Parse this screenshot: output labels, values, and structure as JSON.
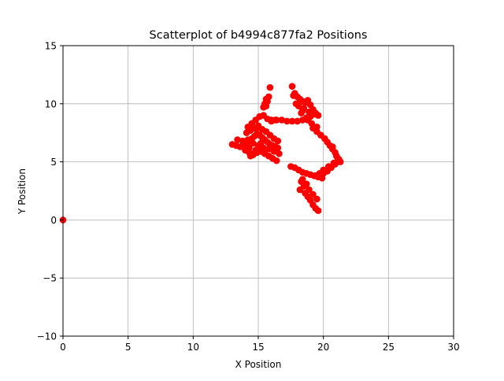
{
  "chart_data": {
    "type": "scatter",
    "title": "Scatterplot of b4994c877fa2 Positions",
    "xlabel": "X Position",
    "ylabel": "Y Position",
    "xlim": [
      0,
      30
    ],
    "ylim": [
      -10,
      15
    ],
    "xticks": [
      0,
      5,
      10,
      15,
      20,
      25,
      30
    ],
    "yticks": [
      -10,
      -5,
      0,
      5,
      10,
      15
    ],
    "xtick_labels": [
      "0",
      "5",
      "10",
      "15",
      "20",
      "25",
      "30"
    ],
    "ytick_labels": [
      "−10",
      "−5",
      "0",
      "5",
      "10",
      "15"
    ],
    "grid": true,
    "marker_color": "#ff0000",
    "series": [
      {
        "x": [
          0,
          13.0,
          13.3,
          13.6,
          13.9,
          14.1,
          14.3,
          14.5,
          14.7,
          14.9,
          15.1,
          15.3,
          15.5,
          15.7,
          15.9,
          16.1,
          16.3,
          16.5,
          13.4,
          13.8,
          14.2,
          14.6,
          15.0,
          15.4,
          15.8,
          16.2,
          16.6,
          14.0,
          14.3,
          14.6,
          14.9,
          15.2,
          15.5,
          15.8,
          16.1,
          16.4,
          14.1,
          14.4,
          14.7,
          15.0,
          15.3,
          15.6,
          15.9,
          16.2,
          16.5,
          14.2,
          14.5,
          14.8,
          15.1,
          15.4,
          15.7,
          16.0,
          16.3,
          14.4,
          14.6,
          14.8,
          15.0,
          15.2,
          14.3,
          14.9,
          15.6,
          15.7,
          15.8,
          15.9,
          15.5,
          15.6,
          15.4,
          16.0,
          16.4,
          16.8,
          17.2,
          17.6,
          18.0,
          18.4,
          18.8,
          17.6,
          17.8,
          18.0,
          18.2,
          18.4,
          18.6,
          18.8,
          19.0,
          19.2,
          19.4,
          19.6,
          18.1,
          18.5,
          18.9,
          19.3,
          17.7,
          17.9,
          18.3,
          18.7,
          19.1,
          19.5,
          18.4,
          19.0,
          19.2,
          19.5,
          19.8,
          20.1,
          20.3,
          20.5,
          20.7,
          20.9,
          21.0,
          21.1,
          21.2,
          21.3,
          20.8,
          20.4,
          20.0,
          19.7,
          19.4,
          20.0,
          20.3,
          20.6,
          20.9,
          21.2,
          20.7,
          17.5,
          17.8,
          18.1,
          18.4,
          18.7,
          19.0,
          19.3,
          19.6,
          19.9,
          18.3,
          18.6,
          18.9,
          19.2,
          19.5,
          18.2,
          18.5,
          18.6,
          18.8,
          19.0,
          19.2,
          19.4,
          19.6,
          18.4,
          18.7
        ],
        "y": [
          0,
          6.5,
          6.4,
          6.3,
          6.5,
          6.6,
          6.8,
          7.0,
          7.2,
          7.4,
          7.3,
          7.1,
          6.9,
          6.7,
          6.5,
          6.4,
          6.3,
          6.2,
          6.9,
          6.8,
          6.9,
          6.6,
          6.4,
          6.2,
          6.1,
          5.9,
          5.7,
          6.0,
          5.8,
          5.6,
          5.8,
          5.9,
          5.7,
          5.5,
          5.3,
          5.1,
          7.5,
          7.7,
          7.9,
          8.1,
          7.8,
          7.6,
          7.3,
          7.0,
          6.8,
          8.0,
          8.3,
          8.6,
          8.9,
          9.0,
          8.7,
          8.5,
          8.6,
          5.5,
          5.7,
          6.0,
          6.3,
          6.6,
          6.2,
          7.9,
          9.8,
          10.2,
          10.6,
          11.4,
          10.0,
          10.4,
          9.7,
          8.6,
          8.6,
          8.6,
          8.5,
          8.5,
          8.5,
          8.6,
          8.6,
          11.5,
          10.9,
          10.6,
          10.4,
          10.2,
          10.1,
          10.3,
          9.9,
          9.5,
          9.2,
          9.0,
          9.8,
          9.6,
          9.3,
          9.1,
          10.7,
          10.0,
          9.2,
          8.8,
          8.3,
          8.0,
          9.4,
          8.9,
          7.9,
          7.6,
          7.3,
          7.0,
          6.7,
          6.4,
          6.1,
          5.8,
          5.5,
          5.3,
          5.1,
          5.0,
          4.9,
          4.6,
          4.3,
          4.0,
          3.8,
          4.0,
          4.2,
          4.5,
          4.8,
          5.2,
          6.3,
          4.6,
          4.5,
          4.3,
          4.1,
          4.0,
          3.9,
          3.8,
          3.7,
          3.6,
          3.3,
          3.0,
          2.6,
          2.2,
          1.8,
          2.6,
          2.9,
          2.3,
          2.0,
          1.7,
          1.3,
          1.0,
          0.8,
          3.5,
          3.1
        ]
      }
    ]
  }
}
